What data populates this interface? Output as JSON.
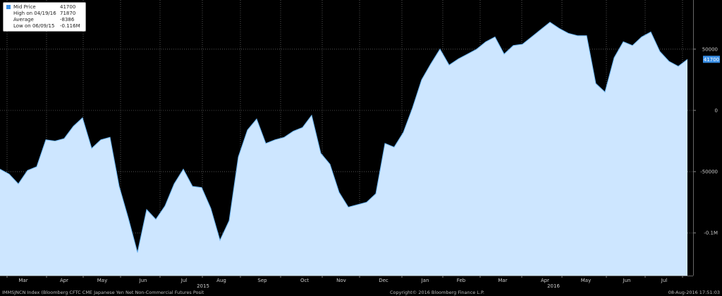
{
  "legend": {
    "items": [
      {
        "label": "Mid Price",
        "value": "41700"
      },
      {
        "label": "High on 04/19/16",
        "value": "71870"
      },
      {
        "label": "Average",
        "value": "-8386"
      },
      {
        "label": "Low on 06/09/15",
        "value": "-0.116M"
      }
    ]
  },
  "footer": {
    "index_label": "IMMSJNCN Index (Bloomberg CFTC CME Japanese Yen Net Non-Commercial Futures Posit",
    "copyright": "Copyright© 2016 Bloomberg Finance L.P.",
    "timestamp": "08-Aug-2016 17:51:03"
  },
  "chart_data": {
    "type": "area",
    "title": "",
    "xlabel": "",
    "ylabel": "",
    "x_unit": "weeks (weekly CFTC positions, Feb 2015 – Aug 2016)",
    "ylim": [
      -135000,
      90000
    ],
    "y_ticks": [
      {
        "value": 50000,
        "label": "50000"
      },
      {
        "value": 0,
        "label": "0"
      },
      {
        "value": -50000,
        "label": "-50000"
      },
      {
        "value": -100000,
        "label": "-0.1M"
      }
    ],
    "x_month_labels": [
      "Mar",
      "Apr",
      "May",
      "Jun",
      "Jul",
      "Aug",
      "Sep",
      "Oct",
      "Nov",
      "Dec",
      "Jan",
      "Feb",
      "Mar",
      "Apr",
      "May",
      "Jun",
      "Jul"
    ],
    "x_year_labels": [
      "2015",
      "2016"
    ],
    "last_value": 41700,
    "last_value_label": "41700",
    "colors": {
      "fill": "#cde6ff",
      "line": "#6cb4f3",
      "grid": "#888888",
      "tag": "#3a8fe6"
    },
    "series": [
      {
        "values": [
          -48000,
          -52000,
          -60000,
          -49000,
          -46000,
          -24000,
          -25000,
          -23000,
          -13000,
          -6000,
          -31000,
          -24000,
          -22000,
          -62000,
          -88000,
          -116000,
          -81000,
          -89000,
          -78000,
          -60000,
          -48000,
          -62000,
          -63000,
          -80000,
          -106000,
          -90000,
          -38000,
          -16000,
          -7000,
          -27000,
          -24000,
          -22000,
          -17000,
          -14000,
          -4000,
          -35000,
          -44000,
          -67000,
          -79000,
          -77000,
          -75000,
          -68000,
          -27000,
          -30000,
          -18000,
          2000,
          25000,
          38000,
          50000,
          37000,
          42000,
          46000,
          50000,
          56000,
          60000,
          46000,
          53000,
          54000,
          60000,
          66000,
          72000,
          67000,
          63000,
          61000,
          61000,
          22000,
          15000,
          43000,
          56000,
          53000,
          60000,
          64000,
          48000,
          40000,
          36000,
          41700
        ]
      }
    ]
  }
}
